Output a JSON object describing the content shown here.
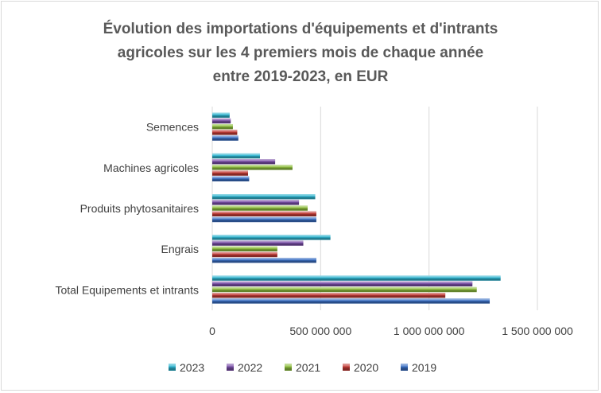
{
  "chart_data": {
    "type": "bar",
    "orientation": "horizontal",
    "title_lines": [
      "Évolution des importations d'équipements et d'intrants",
      "agricoles sur les 4 premiers mois de chaque année",
      "entre 2019-2023,  en EUR"
    ],
    "categories": [
      "Total Equipements et intrants",
      "Engrais",
      "Produits phytosanitaires",
      "Machines agricoles",
      "Semences"
    ],
    "series": [
      {
        "name": "2019",
        "color": "#3a6fc4",
        "values": [
          1280000000,
          480000000,
          480000000,
          170000000,
          120000000
        ]
      },
      {
        "name": "2020",
        "color": "#c23b36",
        "values": [
          1075000000,
          300000000,
          480000000,
          165000000,
          115000000
        ]
      },
      {
        "name": "2021",
        "color": "#8fbf3f",
        "values": [
          1220000000,
          300000000,
          440000000,
          370000000,
          95000000
        ]
      },
      {
        "name": "2022",
        "color": "#7a4fa8",
        "values": [
          1200000000,
          420000000,
          400000000,
          290000000,
          85000000
        ]
      },
      {
        "name": "2023",
        "color": "#2fb4cf",
        "values": [
          1330000000,
          545000000,
          475000000,
          220000000,
          80000000
        ]
      }
    ],
    "xlim": [
      0,
      1500000000
    ],
    "xticks": [
      0,
      500000000,
      1000000000,
      1500000000
    ],
    "xtick_labels": [
      "0",
      "500 000 000",
      "1 000 000 000",
      "1 500 000 000"
    ],
    "legend_order": [
      "2023",
      "2022",
      "2021",
      "2020",
      "2019"
    ],
    "legend_position": "bottom",
    "grid": true
  }
}
